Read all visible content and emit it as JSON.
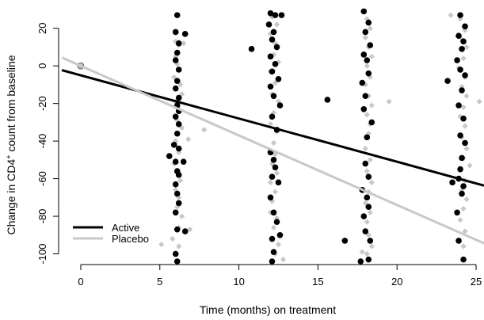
{
  "chart_data": {
    "type": "scatter",
    "title": "",
    "xlabel": "Time (months) on treatment",
    "ylabel_main": "Change in CD4",
    "ylabel_sup": "+",
    "ylabel_rest": " count from baseline",
    "xlim": [
      -1.2,
      25.5
    ],
    "ylim": [
      -104,
      30
    ],
    "xticks": [
      0,
      5,
      10,
      15,
      20,
      25
    ],
    "yticks": [
      20,
      0,
      -20,
      -40,
      -60,
      -80,
      -100
    ],
    "grid": false,
    "legend_position": "bottom-left",
    "series": [
      {
        "name": "Active",
        "color": "#000000",
        "trend": {
          "intercept": -5,
          "slope": -2.3
        },
        "points": [
          [
            6.1,
            27
          ],
          [
            6.0,
            18
          ],
          [
            6.2,
            12
          ],
          [
            6.1,
            7
          ],
          [
            6.0,
            3
          ],
          [
            6.2,
            -2
          ],
          [
            6.1,
            -8
          ],
          [
            6.0,
            -12
          ],
          [
            6.2,
            -17
          ],
          [
            6.1,
            -21
          ],
          [
            6.0,
            -27
          ],
          [
            6.2,
            -31
          ],
          [
            6.1,
            -36
          ],
          [
            5.9,
            -42
          ],
          [
            6.2,
            -44
          ],
          [
            6.0,
            -51
          ],
          [
            6.1,
            -56
          ],
          [
            5.6,
            -48
          ],
          [
            6.2,
            -58
          ],
          [
            6.0,
            -63
          ],
          [
            6.1,
            -68
          ],
          [
            6.2,
            -73
          ],
          [
            6.0,
            -78
          ],
          [
            6.1,
            -87
          ],
          [
            6.6,
            -88
          ],
          [
            6.0,
            -100
          ],
          [
            6.1,
            -104
          ],
          [
            6.5,
            -51
          ],
          [
            6.2,
            -24
          ],
          [
            6.6,
            17
          ],
          [
            12.0,
            28
          ],
          [
            12.3,
            27
          ],
          [
            12.7,
            27
          ],
          [
            11.9,
            22
          ],
          [
            12.2,
            18
          ],
          [
            12.1,
            14
          ],
          [
            12.4,
            10
          ],
          [
            10.8,
            9
          ],
          [
            12.0,
            5
          ],
          [
            12.3,
            1
          ],
          [
            12.1,
            -3
          ],
          [
            12.5,
            -7
          ],
          [
            12.0,
            -11
          ],
          [
            12.2,
            -16
          ],
          [
            12.6,
            -21
          ],
          [
            12.1,
            -27
          ],
          [
            12.4,
            -34
          ],
          [
            12.0,
            -46
          ],
          [
            12.2,
            -50
          ],
          [
            12.3,
            -54
          ],
          [
            12.1,
            -59
          ],
          [
            12.5,
            -62
          ],
          [
            12.0,
            -70
          ],
          [
            12.2,
            -78
          ],
          [
            12.4,
            -83
          ],
          [
            12.1,
            -92
          ],
          [
            12.6,
            -90
          ],
          [
            12.2,
            -99
          ],
          [
            12.1,
            -104
          ],
          [
            17.9,
            29
          ],
          [
            18.2,
            23
          ],
          [
            18.0,
            18
          ],
          [
            18.3,
            11
          ],
          [
            17.9,
            6
          ],
          [
            18.1,
            3
          ],
          [
            18.2,
            -4
          ],
          [
            17.8,
            -9
          ],
          [
            18.0,
            -16
          ],
          [
            15.6,
            -18
          ],
          [
            17.9,
            -23
          ],
          [
            18.4,
            -30
          ],
          [
            18.1,
            -38
          ],
          [
            18.0,
            -52
          ],
          [
            18.2,
            -59
          ],
          [
            17.8,
            -66
          ],
          [
            18.1,
            -70
          ],
          [
            18.2,
            -75
          ],
          [
            17.9,
            -80
          ],
          [
            18.0,
            -88
          ],
          [
            18.3,
            -93
          ],
          [
            16.7,
            -93
          ],
          [
            18.2,
            -103
          ],
          [
            17.7,
            -104
          ],
          [
            24.0,
            27
          ],
          [
            24.3,
            21
          ],
          [
            23.9,
            16
          ],
          [
            24.2,
            13
          ],
          [
            24.1,
            9
          ],
          [
            23.8,
            3
          ],
          [
            24.0,
            -2
          ],
          [
            24.3,
            -5
          ],
          [
            23.2,
            -8
          ],
          [
            24.1,
            -13
          ],
          [
            23.9,
            -21
          ],
          [
            24.2,
            -28
          ],
          [
            24.0,
            -37
          ],
          [
            24.3,
            -41
          ],
          [
            24.1,
            -49
          ],
          [
            24.0,
            -55
          ],
          [
            23.9,
            -60
          ],
          [
            23.5,
            -62
          ],
          [
            24.2,
            -64
          ],
          [
            24.1,
            -68
          ],
          [
            23.8,
            -78
          ],
          [
            23.9,
            -93
          ],
          [
            24.2,
            -103
          ]
        ]
      },
      {
        "name": "Placebo",
        "color": "#c8c8c8",
        "trend": {
          "intercept": 0,
          "slope": -3.7
        },
        "points": [
          [
            0,
            0
          ],
          [
            6.0,
            13
          ],
          [
            6.2,
            11
          ],
          [
            6.0,
            5
          ],
          [
            6.1,
            1
          ],
          [
            6.2,
            -2
          ],
          [
            5.9,
            -6
          ],
          [
            6.3,
            -10
          ],
          [
            6.4,
            -15
          ],
          [
            6.0,
            -19
          ],
          [
            6.2,
            -23
          ],
          [
            6.1,
            -29
          ],
          [
            6.4,
            -33
          ],
          [
            6.0,
            -40
          ],
          [
            6.2,
            -46
          ],
          [
            5.9,
            -52
          ],
          [
            6.1,
            -57
          ],
          [
            6.3,
            -61
          ],
          [
            6.0,
            -66
          ],
          [
            6.2,
            -70
          ],
          [
            6.1,
            -75
          ],
          [
            6.4,
            -80
          ],
          [
            6.2,
            -86
          ],
          [
            6.9,
            -87
          ],
          [
            5.8,
            -92
          ],
          [
            6.2,
            -96
          ],
          [
            5.1,
            -95
          ],
          [
            7.8,
            -34
          ],
          [
            6.8,
            -39
          ],
          [
            6.5,
            12
          ],
          [
            12.1,
            26
          ],
          [
            12.4,
            22
          ],
          [
            12.0,
            17
          ],
          [
            12.3,
            12
          ],
          [
            12.2,
            6
          ],
          [
            12.5,
            2
          ],
          [
            12.0,
            -3
          ],
          [
            12.3,
            -9
          ],
          [
            12.1,
            -15
          ],
          [
            12.5,
            -19
          ],
          [
            12.2,
            -25
          ],
          [
            12.0,
            -31
          ],
          [
            12.4,
            -35
          ],
          [
            12.2,
            -41
          ],
          [
            12.3,
            -47
          ],
          [
            12.1,
            -52
          ],
          [
            12.4,
            -57
          ],
          [
            12.0,
            -62
          ],
          [
            12.3,
            -67
          ],
          [
            12.1,
            -72
          ],
          [
            12.0,
            -78
          ],
          [
            12.4,
            -81
          ],
          [
            12.2,
            -86
          ],
          [
            12.5,
            -95
          ],
          [
            12.3,
            -100
          ],
          [
            12.8,
            -103
          ],
          [
            18.1,
            25
          ],
          [
            18.3,
            20
          ],
          [
            18.0,
            15
          ],
          [
            18.2,
            10
          ],
          [
            18.4,
            5
          ],
          [
            18.1,
            0
          ],
          [
            18.3,
            -6
          ],
          [
            18.0,
            -10
          ],
          [
            18.2,
            -16
          ],
          [
            18.4,
            -21
          ],
          [
            18.1,
            -26
          ],
          [
            18.3,
            -31
          ],
          [
            18.2,
            -36
          ],
          [
            18.0,
            -44
          ],
          [
            18.3,
            -50
          ],
          [
            18.1,
            -56
          ],
          [
            18.4,
            -62
          ],
          [
            18.2,
            -67
          ],
          [
            18.0,
            -73
          ],
          [
            18.3,
            -78
          ],
          [
            18.1,
            -83
          ],
          [
            18.2,
            -90
          ],
          [
            18.4,
            -96
          ],
          [
            18.1,
            -100
          ],
          [
            19.5,
            -19
          ],
          [
            17.8,
            -99
          ],
          [
            23.4,
            27
          ],
          [
            24.0,
            25
          ],
          [
            24.3,
            19
          ],
          [
            24.1,
            14
          ],
          [
            24.4,
            10
          ],
          [
            24.2,
            4
          ],
          [
            23.9,
            -1
          ],
          [
            24.3,
            -6
          ],
          [
            24.1,
            -11
          ],
          [
            24.4,
            -16
          ],
          [
            24.2,
            -22
          ],
          [
            24.0,
            -27
          ],
          [
            24.3,
            -32
          ],
          [
            24.1,
            -38
          ],
          [
            24.4,
            -44
          ],
          [
            24.2,
            -49
          ],
          [
            24.0,
            -55
          ],
          [
            24.3,
            -61
          ],
          [
            24.1,
            -66
          ],
          [
            24.4,
            -71
          ],
          [
            24.2,
            -76
          ],
          [
            24.0,
            -82
          ],
          [
            24.3,
            -88
          ],
          [
            24.2,
            -96
          ],
          [
            25.2,
            -19
          ],
          [
            24.6,
            -53
          ]
        ]
      }
    ]
  }
}
